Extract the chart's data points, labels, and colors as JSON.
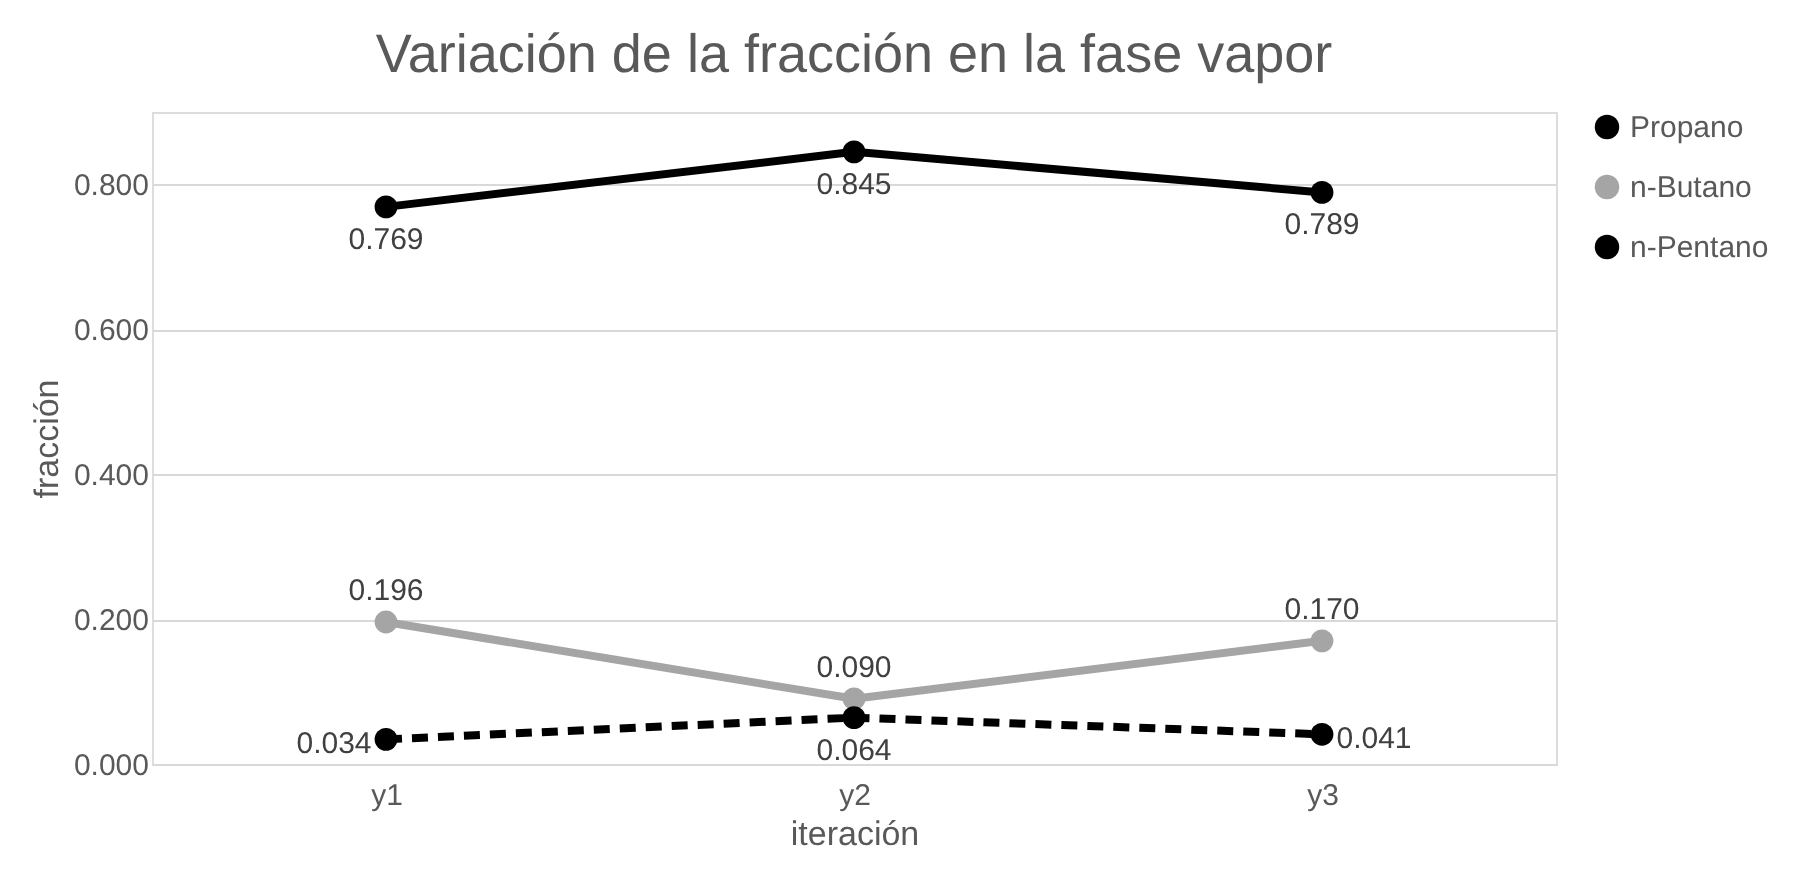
{
  "chart_data": {
    "type": "line",
    "title": "Variación de la fracción en la fase vapor",
    "xlabel": "iteración",
    "ylabel": "fracción",
    "categories": [
      "y1",
      "y2",
      "y3"
    ],
    "series": [
      {
        "name": "Propano",
        "color": "#000000",
        "values": [
          0.769,
          0.845,
          0.789
        ],
        "value_labels": [
          "0.769",
          "0.845",
          "0.789"
        ],
        "line_style": "solid"
      },
      {
        "name": "n-Butano",
        "color": "#a5a5a5",
        "values": [
          0.196,
          0.09,
          0.17
        ],
        "value_labels": [
          "0.196",
          "0.090",
          "0.170"
        ],
        "line_style": "solid"
      },
      {
        "name": "n-Pentano",
        "color": "#000000",
        "values": [
          0.034,
          0.064,
          0.041
        ],
        "value_labels": [
          "0.034",
          "0.064",
          "0.041"
        ],
        "line_style": "dashed"
      }
    ],
    "ylim": [
      0,
      0.9
    ],
    "yticks": [
      {
        "value": 0,
        "label": "0.000"
      },
      {
        "value": 0.2,
        "label": "0.200"
      },
      {
        "value": 0.4,
        "label": "0.400"
      },
      {
        "value": 0.6,
        "label": "0.600"
      },
      {
        "value": 0.8,
        "label": "0.800"
      }
    ],
    "grid": "y",
    "legend": "right",
    "marker": "circle"
  }
}
